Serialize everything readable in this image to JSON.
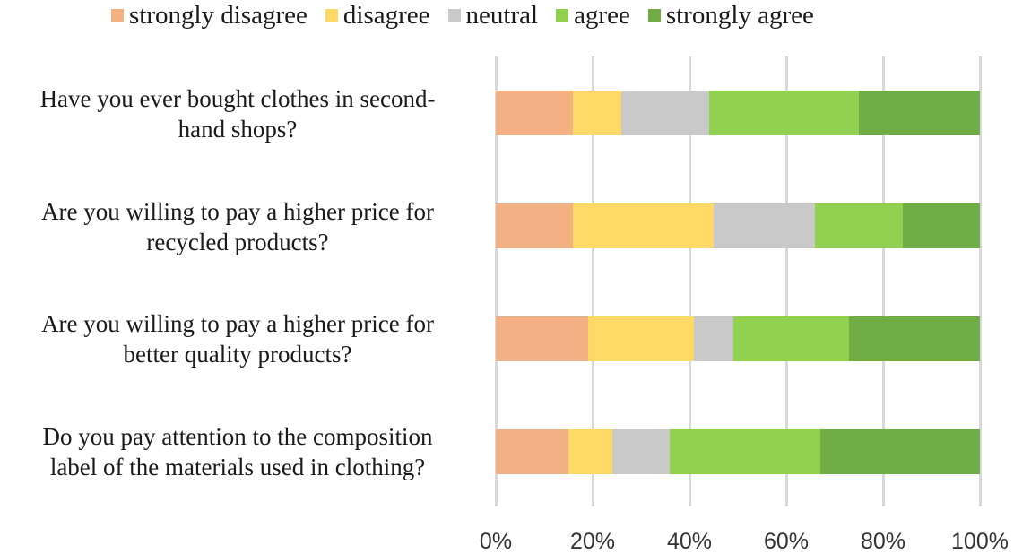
{
  "chart_data": {
    "type": "bar",
    "orientation": "horizontal",
    "stacked": "100%",
    "title": "",
    "xlabel": "",
    "ylabel": "",
    "xlim": [
      0,
      100
    ],
    "grid": true,
    "legend_position": "top",
    "categories": [
      "Have you ever bought clothes in second-hand shops?",
      "Are you willing to pay a higher price for recycled products?",
      "Are you willing to pay a higher price for better quality products?",
      "Do you pay attention to the composition label of the materials used in clothing?"
    ],
    "series": [
      {
        "name": "strongly disagree",
        "color": "#F4B183",
        "values": [
          16,
          16,
          19,
          15
        ]
      },
      {
        "name": "disagree",
        "color": "#FFD966",
        "values": [
          10,
          29,
          22,
          9
        ]
      },
      {
        "name": "neutral",
        "color": "#C9C9C9",
        "values": [
          18,
          21,
          8,
          12
        ]
      },
      {
        "name": "agree",
        "color": "#92D050",
        "values": [
          31,
          18,
          24,
          31
        ]
      },
      {
        "name": "strongly agree",
        "color": "#70AD47",
        "values": [
          25,
          16,
          27,
          33
        ]
      }
    ],
    "x_ticks": [
      "0%",
      "20%",
      "40%",
      "60%",
      "80%",
      "100%"
    ]
  },
  "labels": {
    "cat0": [
      "Have you ever bought clothes in second-",
      "hand shops?"
    ],
    "cat1": [
      "Are you willing to pay a higher price for",
      "recycled products?"
    ],
    "cat2": [
      "Are you willing to pay a higher price for",
      "better quality products?"
    ],
    "cat3": [
      "Do you pay attention to the composition",
      "label of the materials used in clothing?"
    ]
  }
}
